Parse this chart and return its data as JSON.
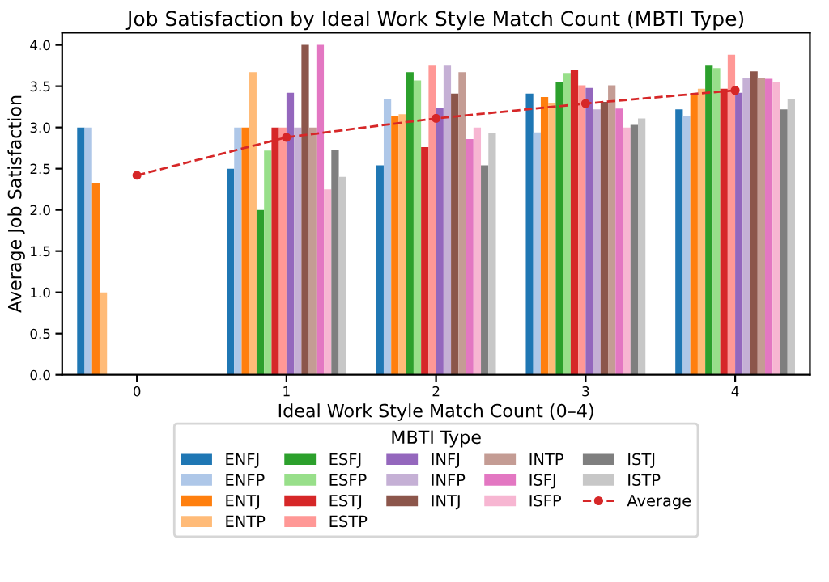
{
  "chart_data": {
    "type": "bar",
    "title": "Job Satisfaction by Ideal Work Style Match Count (MBTI Type)",
    "xlabel": "Ideal Work Style Match Count (0–4)",
    "ylabel": "Average Job Satisfaction",
    "legend_title": "MBTI Type",
    "legend": "bottom",
    "grid": false,
    "categories": [
      "0",
      "1",
      "2",
      "3",
      "4"
    ],
    "ylim": [
      0,
      4.15
    ],
    "yticks": [
      {
        "value": 0,
        "label": "0.0"
      },
      {
        "value": 0.5,
        "label": "0.5"
      },
      {
        "value": 1,
        "label": "1.0"
      },
      {
        "value": 1.5,
        "label": "1.5"
      },
      {
        "value": 2,
        "label": "2.0"
      },
      {
        "value": 2.5,
        "label": "2.5"
      },
      {
        "value": 3,
        "label": "3.0"
      },
      {
        "value": 3.5,
        "label": "3.5"
      },
      {
        "value": 4,
        "label": "4.0"
      }
    ],
    "series": [
      {
        "name": "ENFJ",
        "color": "#1f77b4",
        "values": [
          3.0,
          2.5,
          2.54,
          3.41,
          3.22
        ]
      },
      {
        "name": "ENFP",
        "color": "#aec7e8",
        "values": [
          3.0,
          3.0,
          3.34,
          2.94,
          3.14
        ]
      },
      {
        "name": "ENTJ",
        "color": "#ff7f0e",
        "values": [
          2.33,
          3.0,
          3.14,
          3.37,
          3.4
        ]
      },
      {
        "name": "ENTP",
        "color": "#ffbb78",
        "values": [
          1.0,
          3.67,
          3.16,
          3.3,
          3.47
        ]
      },
      {
        "name": "ESFJ",
        "color": "#2ca02c",
        "values": [
          null,
          2.0,
          3.67,
          3.55,
          3.75
        ]
      },
      {
        "name": "ESFP",
        "color": "#98df8a",
        "values": [
          null,
          2.72,
          3.57,
          3.66,
          3.72
        ]
      },
      {
        "name": "ESTJ",
        "color": "#d62728",
        "values": [
          null,
          3.0,
          2.76,
          3.7,
          3.47
        ]
      },
      {
        "name": "ESTP",
        "color": "#ff9896",
        "values": [
          null,
          3.0,
          3.75,
          3.51,
          3.88
        ]
      },
      {
        "name": "INFJ",
        "color": "#9467bd",
        "values": [
          null,
          3.42,
          3.24,
          3.48,
          3.42
        ]
      },
      {
        "name": "INFP",
        "color": "#c5b0d5",
        "values": [
          null,
          3.0,
          3.75,
          3.22,
          3.6
        ]
      },
      {
        "name": "INTJ",
        "color": "#8c564b",
        "values": [
          null,
          4.0,
          3.41,
          3.31,
          3.68
        ]
      },
      {
        "name": "INTP",
        "color": "#c49c94",
        "values": [
          null,
          3.0,
          3.67,
          3.51,
          3.6
        ]
      },
      {
        "name": "ISFJ",
        "color": "#e377c2",
        "values": [
          null,
          4.0,
          2.86,
          3.23,
          3.59
        ]
      },
      {
        "name": "ISFP",
        "color": "#f7b6d2",
        "values": [
          null,
          2.25,
          3.0,
          3.0,
          3.55
        ]
      },
      {
        "name": "ISTJ",
        "color": "#7f7f7f",
        "values": [
          null,
          2.73,
          2.54,
          3.03,
          3.22
        ]
      },
      {
        "name": "ISTP",
        "color": "#c7c7c7",
        "values": [
          null,
          2.4,
          2.93,
          3.11,
          3.34
        ]
      },
      {
        "name": "Average",
        "type": "line",
        "color": "#d62728",
        "marker": "circle",
        "line_style": "dashed",
        "values": [
          2.42,
          2.88,
          3.11,
          3.29,
          3.45
        ]
      }
    ]
  }
}
